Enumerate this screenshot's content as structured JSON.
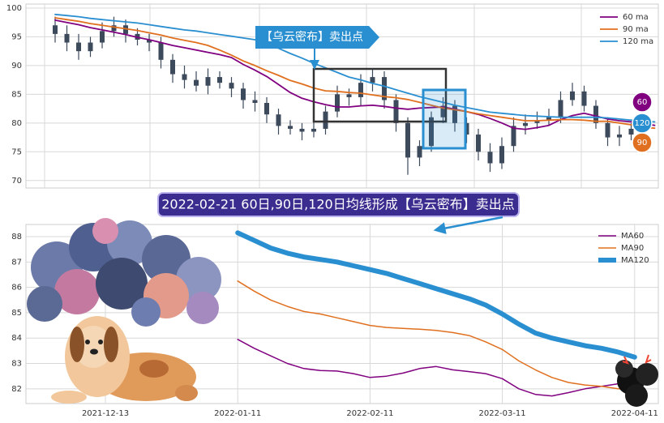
{
  "chart_data": [
    {
      "type": "candlestick",
      "categories": [
        null,
        null,
        null,
        null,
        null,
        null,
        null,
        null,
        null,
        null,
        null,
        null,
        null,
        null,
        null,
        null,
        null,
        null,
        null,
        null,
        null,
        null,
        null,
        null,
        null,
        null,
        null,
        null,
        null,
        null,
        null,
        null,
        null,
        null,
        null,
        null,
        null,
        null,
        null,
        null,
        null,
        null,
        null,
        null,
        null,
        null,
        null,
        null,
        null,
        null,
        null,
        null
      ],
      "open": [
        97,
        95.5,
        94,
        92.5,
        94,
        96,
        97,
        95.5,
        94.5,
        94,
        91,
        88.5,
        87.5,
        86.5,
        88,
        87,
        86,
        84,
        83.5,
        81.5,
        79.5,
        79,
        78.5,
        79,
        82,
        85,
        84.5,
        87,
        88,
        84,
        80,
        74,
        76,
        81,
        83,
        80,
        78,
        75,
        73,
        76,
        79.5,
        80,
        80.5,
        81,
        84,
        85.5,
        83,
        80,
        77.5,
        78,
        null,
        null
      ],
      "high": [
        98.5,
        97,
        95.5,
        95,
        97.5,
        98.5,
        98,
        96.5,
        95.5,
        95,
        92,
        90,
        89,
        89.5,
        89,
        88,
        87,
        85.5,
        84.5,
        82.5,
        80.5,
        80,
        80.5,
        83,
        86.5,
        86,
        88.5,
        89.5,
        89,
        85,
        81,
        77,
        82,
        84.5,
        84,
        81,
        79,
        76.5,
        77.5,
        81,
        81.5,
        82,
        82.5,
        85.5,
        87,
        86.5,
        84,
        81,
        79.5,
        80,
        null,
        null
      ],
      "low": [
        94,
        92.5,
        91,
        91.5,
        93,
        95,
        94,
        93.5,
        92.5,
        89.5,
        87,
        86,
        85.5,
        85,
        86,
        84.5,
        82.5,
        82,
        80,
        78,
        78,
        77,
        77.5,
        78,
        81,
        83,
        83,
        85.5,
        82.5,
        78.5,
        71,
        72.5,
        75,
        80,
        78.5,
        76.5,
        73.5,
        71.5,
        72,
        75,
        78,
        79,
        79.5,
        80,
        83,
        82,
        79,
        76,
        76,
        77,
        null,
        null
      ],
      "close": [
        95.5,
        94,
        92.5,
        94,
        96,
        97,
        95.5,
        94.5,
        94,
        91,
        88.5,
        87.5,
        86.5,
        88,
        87,
        86,
        84,
        83.5,
        81.5,
        79.5,
        79,
        78.5,
        79,
        82,
        85,
        84.5,
        87,
        88,
        84,
        80,
        74,
        76,
        81,
        83,
        80,
        78,
        75,
        73,
        76,
        79.5,
        80,
        80.5,
        81,
        84,
        85.5,
        83,
        80,
        77.5,
        78,
        79,
        null,
        null
      ],
      "candle_color": "#3d4a5c",
      "series": [
        {
          "name": "60 ma",
          "color": "#800080",
          "end_label": "60",
          "values": [
            97.9,
            97.5,
            97.1,
            96.6,
            96.2,
            95.8,
            95.4,
            94.9,
            94.5,
            94.0,
            93.5,
            93.1,
            92.7,
            92.3,
            91.9,
            91.4,
            90.2,
            89.2,
            88.1,
            86.7,
            85.3,
            84.3,
            83.7,
            83.2,
            82.8,
            82.8,
            83.0,
            83.1,
            82.9,
            82.6,
            82.4,
            82.6,
            82.7,
            82.8,
            82.4,
            82.0,
            81.5,
            80.8,
            80.0,
            79.1,
            78.9,
            79.2,
            79.6,
            80.6,
            81.3,
            81.7,
            81.2,
            80.7,
            80.4,
            80.2,
            79.9,
            79.6
          ]
        },
        {
          "name": "90 ma",
          "color": "#e0701f",
          "end_label": "90",
          "values": [
            98.3,
            98.0,
            97.7,
            97.3,
            97.0,
            96.7,
            96.4,
            96.1,
            95.7,
            95.3,
            94.8,
            94.4,
            94.0,
            93.5,
            92.7,
            91.8,
            90.8,
            90.0,
            89.1,
            88.3,
            87.4,
            86.8,
            86.1,
            85.6,
            85.5,
            85.3,
            85.2,
            84.9,
            84.6,
            84.4,
            84.1,
            83.6,
            83.1,
            82.6,
            82.3,
            82.0,
            81.6,
            81.3,
            81.0,
            80.7,
            80.4,
            80.4,
            80.5,
            80.6,
            80.6,
            80.5,
            80.3,
            80.3,
            80.0,
            79.7,
            79.3,
            79.1
          ]
        },
        {
          "name": "120 ma",
          "color": "#2a8fd0",
          "end_label": "120",
          "values": [
            98.9,
            98.7,
            98.5,
            98.2,
            98.0,
            97.8,
            97.6,
            97.4,
            97.1,
            96.8,
            96.5,
            96.2,
            96.0,
            95.7,
            95.4,
            95.1,
            94.8,
            94.5,
            93.9,
            93.0,
            92.1,
            91.3,
            90.4,
            89.6,
            88.8,
            88.0,
            87.5,
            86.9,
            86.4,
            85.8,
            85.2,
            84.6,
            84.1,
            83.6,
            83.1,
            82.7,
            82.3,
            81.9,
            81.7,
            81.5,
            81.3,
            81.2,
            81.1,
            81.0,
            81.0,
            81.0,
            81.0,
            80.9,
            80.7,
            80.5,
            80.3,
            80.2
          ]
        }
      ],
      "ylim": [
        68.7,
        100.7
      ],
      "yticks": [
        70,
        75,
        80,
        85,
        90,
        95,
        100
      ],
      "grid": true,
      "legend": "upper right",
      "annotations": [
        {
          "text": "【乌云密布】卖出点"
        },
        {
          "text": "2022-02-21 60日,90日,120日均线形成【乌云密布】卖出点"
        }
      ]
    },
    {
      "type": "line",
      "categories": [
        "2021-12-13",
        null,
        null,
        null,
        null,
        null,
        null,
        null,
        "2022-01-11",
        null,
        null,
        null,
        null,
        null,
        null,
        null,
        "2022-02-11",
        null,
        null,
        null,
        null,
        null,
        null,
        null,
        "2022-03-11",
        null,
        null,
        null,
        null,
        null,
        null,
        null,
        "2022-04-11"
      ],
      "series": [
        {
          "name": "MA60",
          "color": "#800080",
          "line_width": 1.5,
          "values": [
            null,
            null,
            null,
            null,
            null,
            null,
            null,
            null,
            83.95,
            83.6,
            83.3,
            83.0,
            82.8,
            82.72,
            82.7,
            82.6,
            82.45,
            82.5,
            82.62,
            82.8,
            82.88,
            82.75,
            82.68,
            82.6,
            82.4,
            82.0,
            81.78,
            81.72,
            81.85,
            82.0,
            82.1,
            82.2,
            82.35
          ]
        },
        {
          "name": "MA90",
          "color": "#e0701f",
          "line_width": 1.5,
          "values": [
            null,
            null,
            null,
            null,
            null,
            null,
            null,
            null,
            86.25,
            85.85,
            85.5,
            85.25,
            85.05,
            84.95,
            84.8,
            84.65,
            84.5,
            84.42,
            84.38,
            84.35,
            84.3,
            84.22,
            84.1,
            83.85,
            83.55,
            83.1,
            82.75,
            82.45,
            82.25,
            82.15,
            82.1,
            82.0,
            81.95
          ]
        },
        {
          "name": "MA120",
          "color": "#2a8fd0",
          "line_width": 6,
          "values": [
            null,
            null,
            null,
            null,
            null,
            null,
            null,
            null,
            88.15,
            87.85,
            87.55,
            87.35,
            87.2,
            87.1,
            87.0,
            86.85,
            86.7,
            86.55,
            86.35,
            86.15,
            85.95,
            85.75,
            85.55,
            85.3,
            84.95,
            84.55,
            84.2,
            84.0,
            83.85,
            83.7,
            83.6,
            83.45,
            83.25
          ]
        }
      ],
      "ylim": [
        81.42,
        88.48
      ],
      "yticks": [
        82,
        83,
        84,
        85,
        86,
        87,
        88
      ],
      "grid": true,
      "legend": "upper right"
    }
  ]
}
